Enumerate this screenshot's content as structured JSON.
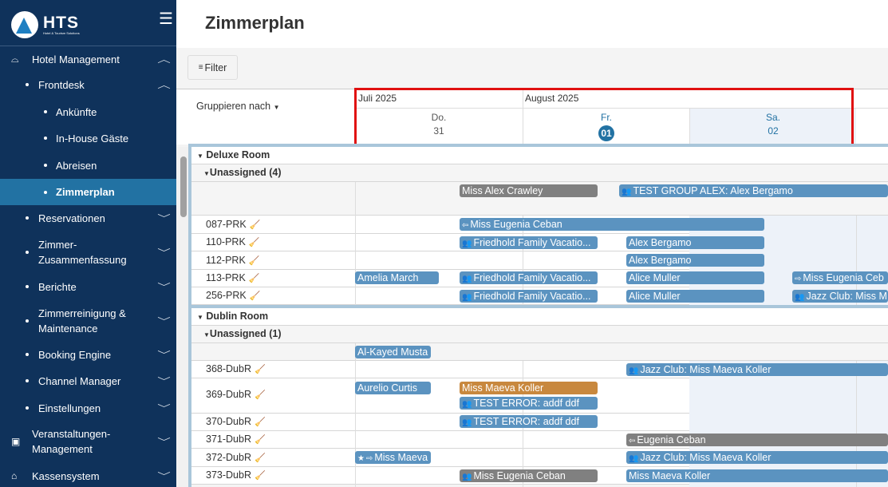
{
  "brand": {
    "name": "HTS",
    "tagline": "Hotel & Tourism Solutions"
  },
  "sidebar": {
    "items": [
      {
        "label": "Hotel Management"
      },
      {
        "label": "Frontdesk"
      },
      {
        "label": "Ankünfte"
      },
      {
        "label": "In-House Gäste"
      },
      {
        "label": "Abreisen"
      },
      {
        "label": "Zimmerplan"
      },
      {
        "label": "Reservationen"
      },
      {
        "label": "Zimmer-Zusammenfassung"
      },
      {
        "label": "Berichte"
      },
      {
        "label": "Zimmerreinigung & Maintenance"
      },
      {
        "label": "Booking Engine"
      },
      {
        "label": "Channel Manager"
      },
      {
        "label": "Einstellungen"
      },
      {
        "label": "Veranstaltungen-Management"
      },
      {
        "label": "Kassensystem"
      }
    ]
  },
  "page": {
    "title": "Zimmerplan",
    "filter_label": "Filter",
    "group_by_label": "Gruppieren nach"
  },
  "calendar": {
    "months": [
      "Juli 2025",
      "August 2025"
    ],
    "days": [
      {
        "dow": "Do.",
        "num": "31"
      },
      {
        "dow": "Fr.",
        "num": "01",
        "today": true
      },
      {
        "dow": "Sa.",
        "num": "02"
      }
    ]
  },
  "groups": [
    {
      "name": "Deluxe Room",
      "unassigned": "Unassigned (4)",
      "unassigned_bars": [
        "Miss Alex Crawley",
        "TEST GROUP ALEX: Alex Bergamo"
      ],
      "rooms": [
        {
          "room": "087-PRK",
          "status": "#2e7d5b",
          "bars": [
            "Miss Eugenia Ceban"
          ]
        },
        {
          "room": "110-PRK",
          "status": "#2e7d5b",
          "bars": [
            "Friedhold Family Vacatio...",
            "Alex Bergamo"
          ]
        },
        {
          "room": "112-PRK",
          "status": "#e0b020",
          "bars": [
            "Alex Bergamo"
          ]
        },
        {
          "room": "113-PRK",
          "status": "#2e7d5b",
          "bars": [
            "Amelia March",
            "Friedhold Family Vacatio...",
            "Alice Muller",
            "Miss Eugenia Ceb"
          ]
        },
        {
          "room": "256-PRK",
          "status": "#e03040",
          "bars": [
            "Friedhold Family Vacatio...",
            "Alice Muller",
            "Jazz Club: Miss M"
          ]
        }
      ]
    },
    {
      "name": "Dublin Room",
      "unassigned": "Unassigned (1)",
      "unassigned_bars": [
        "Al-Kayed Musta"
      ],
      "rooms": [
        {
          "room": "368-DubR",
          "status": "#2e7d5b",
          "bars": [
            "Jazz Club: Miss Maeva Koller"
          ]
        },
        {
          "room": "369-DubR",
          "status": "#2e7d5b",
          "bars": [
            "Aurelio Curtis",
            "Miss Maeva Koller",
            "TEST ERROR: addf ddf"
          ]
        },
        {
          "room": "370-DubR",
          "status": "#2e7d5b",
          "bars": [
            "TEST ERROR: addf ddf"
          ]
        },
        {
          "room": "371-DubR",
          "status": "#2e7d5b",
          "bars": [
            "Eugenia Ceban"
          ]
        },
        {
          "room": "372-DubR",
          "status": "#2e7d5b",
          "bars": [
            "Miss Maeva",
            "Jazz Club: Miss Maeva Koller"
          ]
        },
        {
          "room": "373-DubR",
          "status": "#2e7d5b",
          "bars": [
            "Miss Eugenia Ceban",
            "Miss Maeva Koller"
          ]
        }
      ]
    }
  ],
  "colors": {
    "sidebar": "#0f325b",
    "active": "#2272a3",
    "bar_blue": "#5b93c0",
    "bar_grey": "#808080",
    "bar_orange": "#c8883e",
    "highlight": "#e01010"
  }
}
